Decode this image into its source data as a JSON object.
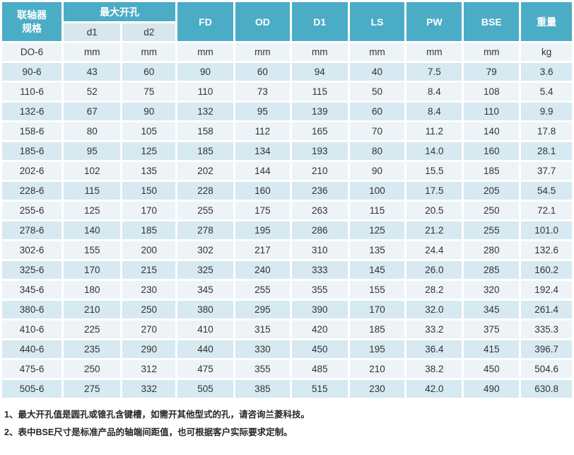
{
  "colors": {
    "header_teal": "#4BACC6",
    "subheader_bg": "#D8E7ED",
    "row_light": "#EDF3F7",
    "row_blue": "#D7E9F1",
    "header_text": "#FFFFFF",
    "body_text": "#333333"
  },
  "table": {
    "header": {
      "spec": "联轴器\n规格",
      "max_bore": "最大开孔",
      "d1": "d1",
      "d2": "d2",
      "fd": "FD",
      "od": "OD",
      "d1_big": "D1",
      "ls": "LS",
      "pw": "PW",
      "bse": "BSE",
      "weight": "重量"
    },
    "rows": [
      [
        "DO-6",
        "mm",
        "mm",
        "mm",
        "mm",
        "mm",
        "mm",
        "mm",
        "mm",
        "kg"
      ],
      [
        "90-6",
        "43",
        "60",
        "90",
        "60",
        "94",
        "40",
        "7.5",
        "79",
        "3.6"
      ],
      [
        "110-6",
        "52",
        "75",
        "110",
        "73",
        "115",
        "50",
        "8.4",
        "108",
        "5.4"
      ],
      [
        "132-6",
        "67",
        "90",
        "132",
        "95",
        "139",
        "60",
        "8.4",
        "110",
        "9.9"
      ],
      [
        "158-6",
        "80",
        "105",
        "158",
        "112",
        "165",
        "70",
        "11.2",
        "140",
        "17.8"
      ],
      [
        "185-6",
        "95",
        "125",
        "185",
        "134",
        "193",
        "80",
        "14.0",
        "160",
        "28.1"
      ],
      [
        "202-6",
        "102",
        "135",
        "202",
        "144",
        "210",
        "90",
        "15.5",
        "185",
        "37.7"
      ],
      [
        "228-6",
        "115",
        "150",
        "228",
        "160",
        "236",
        "100",
        "17.5",
        "205",
        "54.5"
      ],
      [
        "255-6",
        "125",
        "170",
        "255",
        "175",
        "263",
        "115",
        "20.5",
        "250",
        "72.1"
      ],
      [
        "278-6",
        "140",
        "185",
        "278",
        "195",
        "286",
        "125",
        "21.2",
        "255",
        "101.0"
      ],
      [
        "302-6",
        "155",
        "200",
        "302",
        "217",
        "310",
        "135",
        "24.4",
        "280",
        "132.6"
      ],
      [
        "325-6",
        "170",
        "215",
        "325",
        "240",
        "333",
        "145",
        "26.0",
        "285",
        "160.2"
      ],
      [
        "345-6",
        "180",
        "230",
        "345",
        "255",
        "355",
        "155",
        "28.2",
        "320",
        "192.4"
      ],
      [
        "380-6",
        "210",
        "250",
        "380",
        "295",
        "390",
        "170",
        "32.0",
        "345",
        "261.4"
      ],
      [
        "410-6",
        "225",
        "270",
        "410",
        "315",
        "420",
        "185",
        "33.2",
        "375",
        "335.3"
      ],
      [
        "440-6",
        "235",
        "290",
        "440",
        "330",
        "450",
        "195",
        "36.4",
        "415",
        "396.7"
      ],
      [
        "475-6",
        "250",
        "312",
        "475",
        "355",
        "485",
        "210",
        "38.2",
        "450",
        "504.6"
      ],
      [
        "505-6",
        "275",
        "332",
        "505",
        "385",
        "515",
        "230",
        "42.0",
        "490",
        "630.8"
      ]
    ]
  },
  "notes": {
    "line1": "1、最大开孔值是圆孔或锥孔含键槽，如需开其他型式的孔，请咨询兰菱科技。",
    "line2": "2、表中BSE尺寸是标准产品的轴端间距值，也可根据客户实际要求定制。"
  }
}
